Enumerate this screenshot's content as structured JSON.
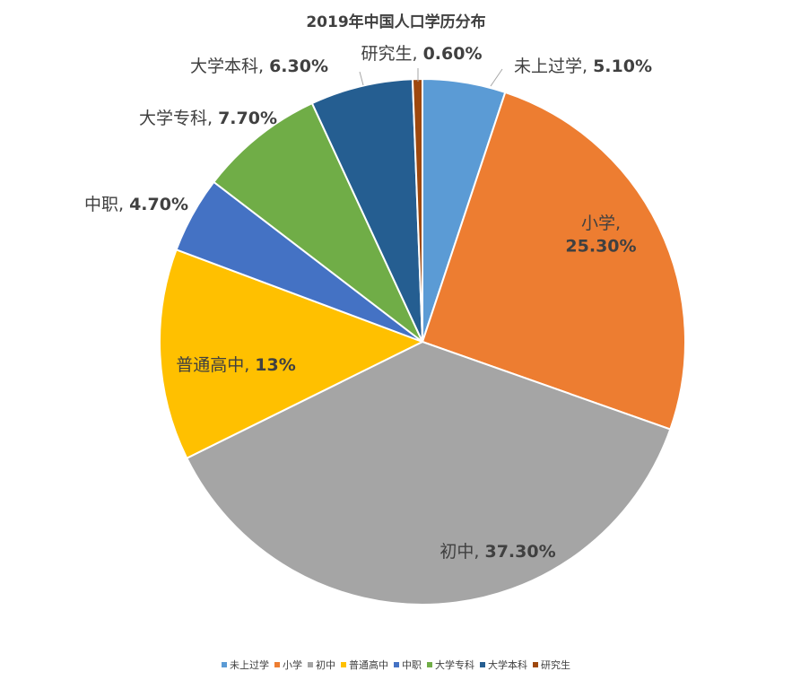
{
  "chart_data": {
    "type": "pie",
    "title": "2019年中国人口学历分布",
    "slices": [
      {
        "label": "未上过学",
        "value": 5.1,
        "data_label": "未上过学, 5.10%",
        "color": "#5B9BD5"
      },
      {
        "label": "小学",
        "value": 25.3,
        "data_label": "小学,\n25.30%",
        "color": "#ED7D31"
      },
      {
        "label": "初中",
        "value": 37.3,
        "data_label": "初中, 37.30%",
        "color": "#A5A5A5"
      },
      {
        "label": "普通高中",
        "value": 13.0,
        "data_label": "普通高中, 13%",
        "color": "#FFC000"
      },
      {
        "label": "中职",
        "value": 4.7,
        "data_label": "中职, 4.70%",
        "color": "#4472C4"
      },
      {
        "label": "大学专科",
        "value": 7.7,
        "data_label": "大学专科, 7.70%",
        "color": "#70AD47"
      },
      {
        "label": "大学本科",
        "value": 6.3,
        "data_label": "大学本科, 6.30%",
        "color": "#255E91"
      },
      {
        "label": "研究生",
        "value": 0.6,
        "data_label": "研究生, 0.60%",
        "color": "#9E480E"
      }
    ],
    "legend_position": "bottom"
  }
}
